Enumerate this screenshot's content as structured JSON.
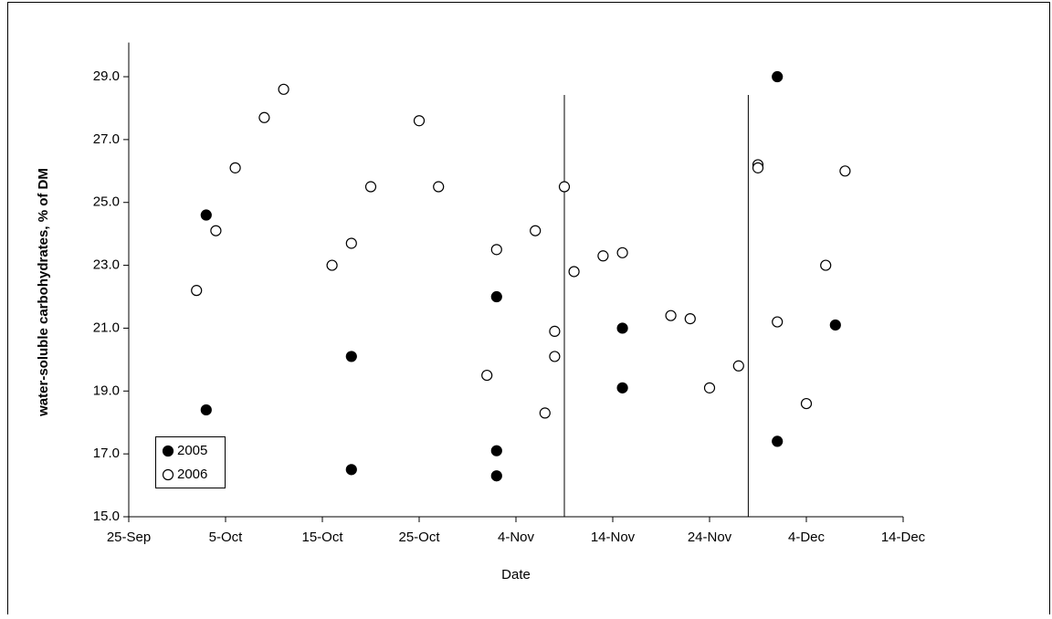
{
  "chart_data": {
    "type": "scatter",
    "x_label": "Date",
    "y_label": "water-soluble carbohydrates, % of DM",
    "xlim": [
      268,
      348
    ],
    "xticks": [
      {
        "value": 268,
        "label": "25-Sep"
      },
      {
        "value": 278,
        "label": "5-Oct"
      },
      {
        "value": 288,
        "label": "15-Oct"
      },
      {
        "value": 298,
        "label": "25-Oct"
      },
      {
        "value": 308,
        "label": "4-Nov"
      },
      {
        "value": 318,
        "label": "14-Nov"
      },
      {
        "value": 328,
        "label": "24-Nov"
      },
      {
        "value": 338,
        "label": "4-Dec"
      },
      {
        "value": 348,
        "label": "14-Dec"
      }
    ],
    "ylim": [
      15,
      30
    ],
    "yticks": [
      {
        "value": 15,
        "label": "15.0"
      },
      {
        "value": 17,
        "label": "17.0"
      },
      {
        "value": 19,
        "label": "19.0"
      },
      {
        "value": 21,
        "label": "21.0"
      },
      {
        "value": 23,
        "label": "23.0"
      },
      {
        "value": 25,
        "label": "25.0"
      },
      {
        "value": 27,
        "label": "27.0"
      },
      {
        "value": 29,
        "label": "29.0"
      }
    ],
    "vlines": [
      313,
      332
    ],
    "legend": "lower-left",
    "series": [
      {
        "name": "2005",
        "color": "#000000",
        "filled": true,
        "x": [
          276,
          276,
          291,
          291,
          306,
          306,
          306,
          319,
          319,
          335,
          335,
          341
        ],
        "values": [
          24.6,
          18.4,
          20.1,
          16.5,
          22.0,
          17.1,
          16.3,
          21.0,
          19.1,
          29.0,
          17.4,
          21.1
        ]
      },
      {
        "name": "2006",
        "color": "#000000",
        "filled": false,
        "x": [
          275,
          277,
          279,
          282,
          284,
          289,
          291,
          293,
          298,
          300,
          305,
          306,
          310,
          311,
          312,
          312,
          313,
          314,
          317,
          319,
          324,
          326,
          328,
          331,
          333,
          333,
          335,
          338,
          340,
          342
        ],
        "values": [
          22.2,
          24.1,
          26.1,
          27.7,
          28.6,
          23.0,
          23.7,
          25.5,
          27.6,
          25.5,
          19.5,
          23.5,
          24.1,
          18.3,
          20.9,
          20.1,
          25.5,
          22.8,
          23.3,
          23.4,
          21.4,
          21.3,
          19.1,
          19.8,
          26.2,
          26.1,
          21.2,
          18.6,
          23.0,
          26.0
        ]
      }
    ]
  }
}
